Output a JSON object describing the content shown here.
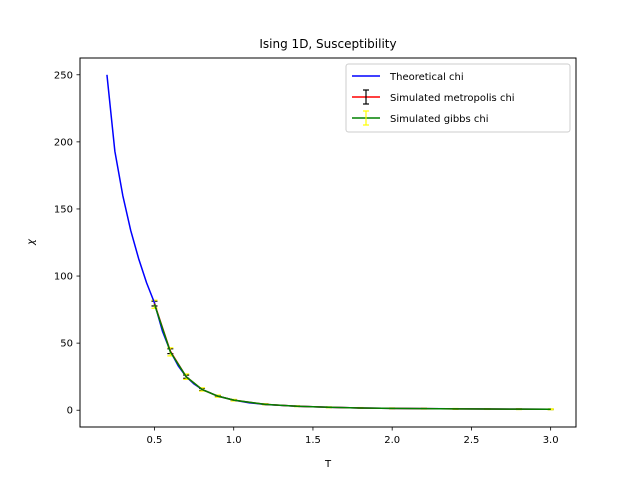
{
  "chart_data": {
    "type": "line",
    "title": "Ising 1D, Susceptibility",
    "xlabel": "T",
    "ylabel": "χ",
    "xlim": [
      0.03,
      3.16
    ],
    "ylim": [
      -12.5,
      262.5
    ],
    "xticks": [
      0.5,
      1.0,
      1.5,
      2.0,
      2.5,
      3.0
    ],
    "xtick_labels": [
      "0.5",
      "1.0",
      "1.5",
      "2.0",
      "2.5",
      "3.0"
    ],
    "yticks": [
      0,
      50,
      100,
      150,
      200,
      250
    ],
    "ytick_labels": [
      "0",
      "50",
      "100",
      "150",
      "200",
      "250"
    ],
    "grid": false,
    "legend_position": "top-right",
    "series": [
      {
        "name": "Theoretical chi",
        "color": "#0000ff",
        "style": "line",
        "x": [
          0.2,
          0.25,
          0.3,
          0.35,
          0.4,
          0.45,
          0.5,
          0.55,
          0.6,
          0.65,
          0.7,
          0.75,
          0.8,
          0.9,
          1.0,
          1.1,
          1.2,
          1.4,
          1.6,
          1.8,
          2.0,
          2.2,
          2.5,
          2.8,
          3.0
        ],
        "y": [
          250,
          193,
          160,
          134,
          113,
          95,
          80,
          59,
          44,
          33,
          25,
          19.5,
          15.5,
          10.5,
          7.5,
          5.5,
          4.3,
          3.0,
          2.2,
          1.7,
          1.4,
          1.2,
          1.0,
          0.8,
          0.7
        ]
      },
      {
        "name": "Simulated metropolis chi",
        "color": "#ff0000",
        "style": "errorbar",
        "errcolor": "#000000",
        "x": [
          0.5,
          0.6,
          0.7,
          0.8,
          0.9,
          1.0,
          1.2,
          1.4,
          1.6,
          1.8,
          2.0,
          2.2,
          2.4,
          2.6,
          2.8,
          3.0
        ],
        "y": [
          79.5,
          44,
          25,
          15.5,
          10.5,
          7.5,
          4.4,
          3.0,
          2.2,
          1.7,
          1.4,
          1.2,
          1.0,
          0.9,
          0.8,
          0.7
        ],
        "err": [
          1.8,
          1.8,
          1.2,
          0.8,
          0.5,
          0.4,
          0.3,
          0.2,
          0.2,
          0.2,
          0.2,
          0.2,
          0.2,
          0.2,
          0.2,
          0.2
        ]
      },
      {
        "name": "Simulated gibbs chi",
        "color": "#008000",
        "style": "errorbar",
        "errcolor": "#ffff00",
        "x": [
          0.5,
          0.6,
          0.7,
          0.8,
          0.9,
          1.0,
          1.2,
          1.4,
          1.6,
          1.8,
          2.0,
          2.2,
          2.4,
          2.6,
          2.8,
          3.0
        ],
        "y": [
          79.0,
          43.5,
          25.0,
          15.5,
          10.5,
          7.5,
          4.4,
          3.0,
          2.2,
          1.7,
          1.4,
          1.2,
          1.0,
          0.9,
          0.8,
          0.7
        ],
        "err": [
          3.0,
          3.0,
          2.0,
          1.2,
          0.8,
          0.6,
          0.4,
          0.3,
          0.3,
          0.3,
          0.3,
          0.3,
          0.3,
          0.3,
          0.3,
          0.3
        ]
      }
    ]
  }
}
